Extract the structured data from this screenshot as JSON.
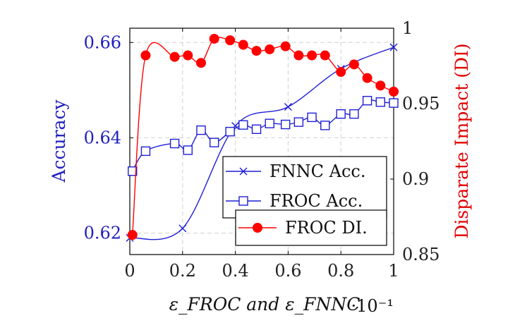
{
  "chart_data": {
    "type": "line",
    "title": "",
    "xlabel": "ε_FROC and ε_FNNC",
    "xlabel_exponent": "·10⁻¹",
    "ylabel_left": "Accuracy",
    "ylabel_right": "Disparate Impact (DI)",
    "xlim": [
      0,
      1
    ],
    "ylim_left": [
      0.6155,
      0.663
    ],
    "ylim_right": [
      0.85,
      1.0
    ],
    "x_ticks": [
      "0",
      "0.2",
      "0.4",
      "0.6",
      "0.8",
      "1"
    ],
    "x_tick_values": [
      0,
      0.2,
      0.4,
      0.6,
      0.8,
      1.0
    ],
    "y_ticks_left": [
      "0.62",
      "0.64",
      "0.66"
    ],
    "y_tick_values_left": [
      0.62,
      0.64,
      0.66
    ],
    "y_ticks_right": [
      "0.85",
      "0.9",
      "0.95",
      "1"
    ],
    "y_tick_values_right": [
      0.85,
      0.9,
      0.95,
      1.0
    ],
    "grid": true,
    "series": [
      {
        "name": "FNNC Acc.",
        "axis": "left",
        "color": "#1f1fd6",
        "marker": "x",
        "smooth": true,
        "x": [
          0.0,
          0.2,
          0.4,
          0.6,
          0.8,
          1.0
        ],
        "values": [
          0.619,
          0.621,
          0.6425,
          0.6465,
          0.6545,
          0.659
        ]
      },
      {
        "name": "FROC Acc.",
        "axis": "left",
        "color": "#1f1fd6",
        "marker": "square",
        "smooth": true,
        "x": [
          0.01,
          0.06,
          0.17,
          0.22,
          0.27,
          0.32,
          0.38,
          0.43,
          0.48,
          0.53,
          0.59,
          0.64,
          0.69,
          0.74,
          0.8,
          0.85,
          0.9,
          0.95,
          1.0
        ],
        "values": [
          0.633,
          0.6372,
          0.6388,
          0.6374,
          0.6416,
          0.639,
          0.6413,
          0.6427,
          0.6418,
          0.643,
          0.6428,
          0.6433,
          0.6443,
          0.6426,
          0.645,
          0.645,
          0.6478,
          0.6475,
          0.6473
        ]
      },
      {
        "name": "FROC DI.",
        "axis": "right",
        "color": "#ff0000",
        "marker": "circle",
        "smooth": true,
        "x": [
          0.01,
          0.06,
          0.17,
          0.22,
          0.27,
          0.32,
          0.38,
          0.43,
          0.48,
          0.53,
          0.59,
          0.64,
          0.69,
          0.74,
          0.8,
          0.85,
          0.9,
          0.95,
          1.0
        ],
        "values": [
          0.863,
          0.982,
          0.981,
          0.982,
          0.977,
          0.993,
          0.992,
          0.989,
          0.985,
          0.986,
          0.988,
          0.982,
          0.982,
          0.982,
          0.971,
          0.976,
          0.967,
          0.962,
          0.958
        ]
      }
    ],
    "legend": {
      "placement": "lower-right",
      "entries": [
        "FNNC Acc.",
        "FROC Acc.",
        "FROC DI."
      ]
    }
  }
}
